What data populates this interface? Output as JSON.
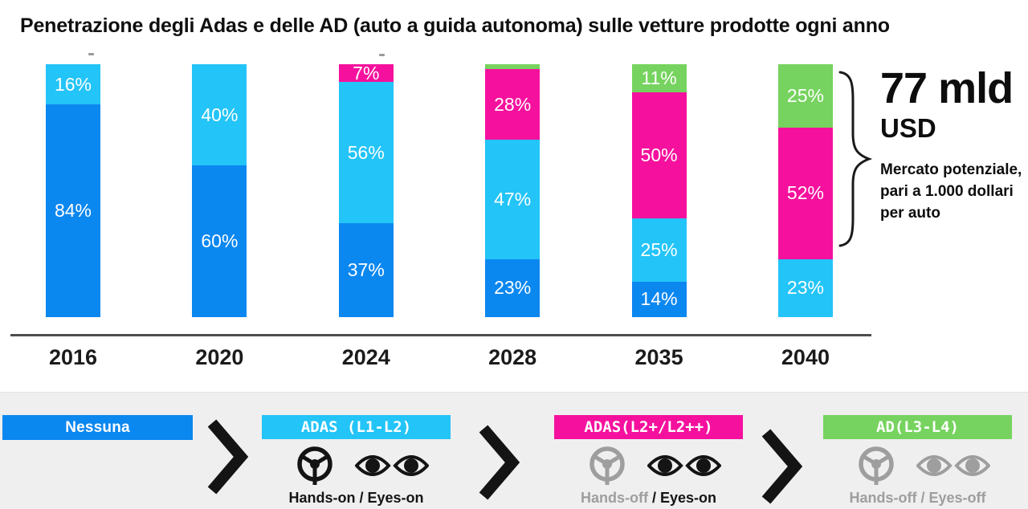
{
  "title": "Penetrazione degli Adas e delle AD (auto a guida autonoma) sulle vetture prodotte ogni anno",
  "chart_data": {
    "type": "bar",
    "stacked": true,
    "title": "Penetrazione degli Adas e delle AD (auto a guida autonoma) sulle vetture prodotte ogni anno",
    "categories": [
      "2016",
      "2020",
      "2024",
      "2028",
      "2035",
      "2040"
    ],
    "series": [
      {
        "name": "Nessuna",
        "color": "#0b87f0",
        "values": [
          84,
          60,
          37,
          23,
          14,
          0
        ]
      },
      {
        "name": "ADAS (L1-L2)",
        "color": "#23c4f7",
        "values": [
          16,
          40,
          56,
          47,
          25,
          23
        ]
      },
      {
        "name": "ADAS (L2+/L2++)",
        "color": "#f5119d",
        "values": [
          0,
          0,
          7,
          28,
          50,
          52
        ]
      },
      {
        "name": "AD (L3-L4)",
        "color": "#76d35f",
        "values": [
          0,
          0,
          0,
          2,
          11,
          25
        ]
      }
    ],
    "unit": "%",
    "ylim": [
      0,
      100
    ],
    "grid": false,
    "legend_position": "bottom",
    "label_min_pct": 7
  },
  "annotation": {
    "headline": "77 mld",
    "currency": "USD",
    "note": "Mercato potenziale, pari a 1.000 dollari per auto"
  },
  "legend": {
    "groups": [
      {
        "label": "Nessuna",
        "color": "#0b87f0"
      },
      {
        "label": "ADAS (L1-L2)",
        "color": "#23c4f7",
        "caption": {
          "hands": "Hands-on",
          "slash": "/",
          "eyes": "Eyes-on"
        }
      },
      {
        "label": "ADAS(L2+/L2++)",
        "color": "#f5119d",
        "caption": {
          "hands": "Hands-off",
          "slash": "/",
          "eyes": "Eyes-on"
        }
      },
      {
        "label": "AD(L3-L4)",
        "color": "#76d35f",
        "caption": {
          "hands": "Hands-off",
          "slash": "/",
          "eyes": "Eyes-off"
        }
      }
    ]
  }
}
